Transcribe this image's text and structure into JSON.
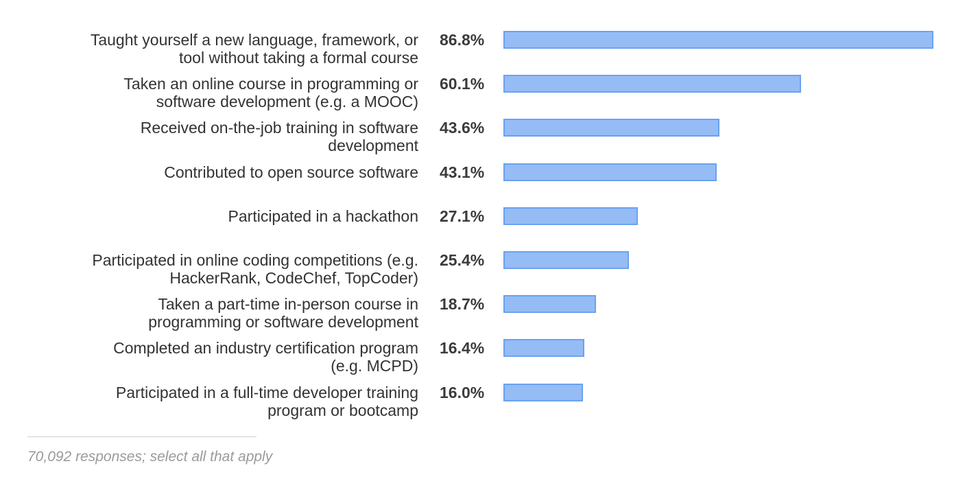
{
  "chart_data": {
    "type": "bar",
    "orientation": "horizontal",
    "categories": [
      "Taught yourself a new language, framework, or tool without taking a formal course",
      "Taken an online course in programming or software development (e.g. a MOOC)",
      "Received on-the-job training in software development",
      "Contributed to open source software",
      "Participated in a hackathon",
      "Participated in online coding competitions (e.g. HackerRank, CodeChef, TopCoder)",
      "Taken a part-time in-person course in programming or software development",
      "Completed an industry certification program (e.g. MCPD)",
      "Participated in a full-time developer training program or bootcamp"
    ],
    "label_lines": [
      [
        "Taught yourself a new language, framework, or",
        "tool without taking a formal course"
      ],
      [
        "Taken an online course in programming or",
        "software development (e.g. a MOOC)"
      ],
      [
        "Received on-the-job training in software",
        "development"
      ],
      [
        "Contributed to open source software"
      ],
      [
        "Participated in a hackathon"
      ],
      [
        "Participated in online coding competitions (e.g.",
        "HackerRank, CodeChef, TopCoder)"
      ],
      [
        "Taken a part-time in-person course in",
        "programming or software development"
      ],
      [
        "Completed an industry certification program",
        "(e.g. MCPD)"
      ],
      [
        "Participated in a full-time developer training",
        "program or bootcamp"
      ]
    ],
    "values": [
      86.8,
      60.1,
      43.6,
      43.1,
      27.1,
      25.4,
      18.7,
      16.4,
      16.0
    ],
    "value_labels": [
      "86.8%",
      "60.1%",
      "43.6%",
      "43.1%",
      "27.1%",
      "25.4%",
      "18.7%",
      "16.4%",
      "16.0%"
    ],
    "unit": "%",
    "grid": false,
    "bar_fill": "#96bcf5",
    "bar_border": "#6aa1f2"
  },
  "footnote": "70,092 responses; select all that apply"
}
